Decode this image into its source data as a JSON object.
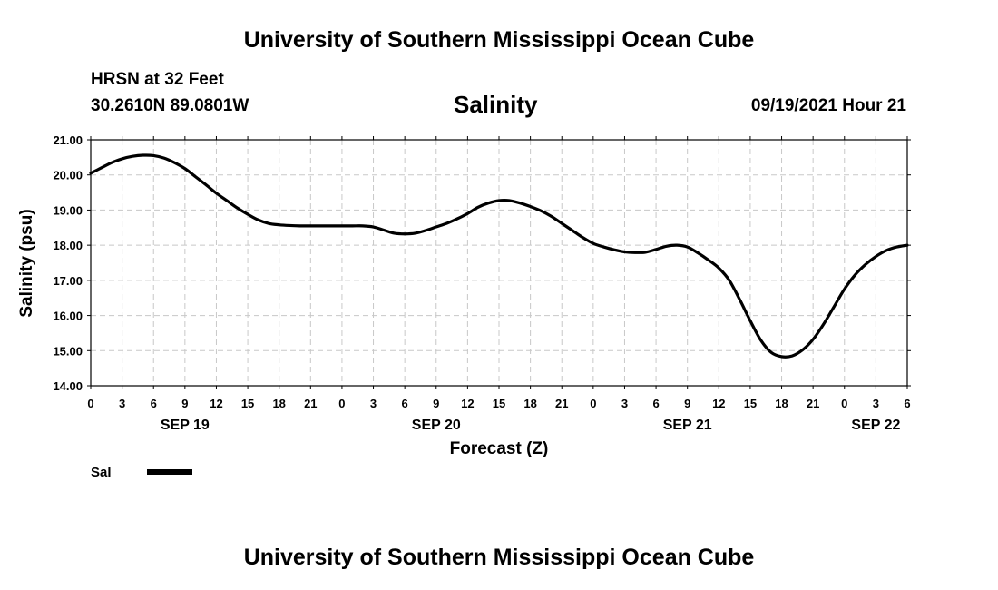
{
  "header": {
    "title": "University of Southern Mississippi Ocean Cube",
    "station": "HRSN at 32 Feet",
    "coordinates": "30.2610N  89.0801W",
    "timestamp": "09/19/2021 Hour 21"
  },
  "footer": {
    "title": "University of Southern Mississippi Ocean Cube"
  },
  "chart_data": {
    "type": "line",
    "title": "Salinity",
    "xlabel": "Forecast (Z)",
    "ylabel": "Salinity (psu)",
    "ylim": [
      14,
      21
    ],
    "xlim": [
      0,
      78
    ],
    "x_unit": "hours since 2021-09-19 00Z",
    "yticks": [
      "14.00",
      "15.00",
      "16.00",
      "17.00",
      "18.00",
      "19.00",
      "20.00",
      "21.00"
    ],
    "xticks": [
      "0",
      "3",
      "6",
      "9",
      "12",
      "15",
      "18",
      "21",
      "0",
      "3",
      "6",
      "9",
      "12",
      "15",
      "18",
      "21",
      "0",
      "3",
      "6",
      "9",
      "12",
      "15",
      "18",
      "21",
      "0",
      "3",
      "6"
    ],
    "day_labels": [
      {
        "label": "SEP 19",
        "hour": 9
      },
      {
        "label": "SEP 20",
        "hour": 33
      },
      {
        "label": "SEP 21",
        "hour": 57
      },
      {
        "label": "SEP 22",
        "hour": 75
      }
    ],
    "grid": true,
    "series": [
      {
        "name": "Sal",
        "color": "#000000",
        "x": [
          0,
          1,
          2,
          3,
          4,
          5,
          6,
          7,
          8,
          9,
          10,
          11,
          12,
          13,
          14,
          15,
          16,
          17,
          18,
          19,
          20,
          21,
          22,
          23,
          24,
          25,
          26,
          27,
          28,
          29,
          30,
          31,
          32,
          33,
          34,
          35,
          36,
          37,
          38,
          39,
          40,
          41,
          42,
          43,
          44,
          45,
          46,
          47,
          48,
          49,
          50,
          51,
          52,
          53,
          54,
          55,
          56,
          57,
          58,
          59,
          60,
          61,
          62,
          63,
          64,
          65,
          66,
          67,
          68,
          69,
          70,
          71,
          72,
          73,
          74,
          75,
          76,
          77,
          78
        ],
        "values": [
          20.05,
          20.2,
          20.35,
          20.46,
          20.53,
          20.56,
          20.55,
          20.48,
          20.35,
          20.18,
          19.95,
          19.72,
          19.48,
          19.27,
          19.06,
          18.88,
          18.72,
          18.62,
          18.58,
          18.56,
          18.55,
          18.55,
          18.55,
          18.55,
          18.55,
          18.55,
          18.55,
          18.52,
          18.43,
          18.34,
          18.32,
          18.34,
          18.42,
          18.52,
          18.62,
          18.75,
          18.9,
          19.08,
          19.2,
          19.27,
          19.27,
          19.2,
          19.1,
          18.98,
          18.82,
          18.62,
          18.42,
          18.22,
          18.05,
          17.95,
          17.87,
          17.81,
          17.79,
          17.8,
          17.88,
          17.97,
          18.0,
          17.95,
          17.78,
          17.58,
          17.35,
          17.0,
          16.45,
          15.85,
          15.3,
          14.95,
          14.83,
          14.85,
          15.02,
          15.32,
          15.75,
          16.25,
          16.75,
          17.15,
          17.45,
          17.68,
          17.85,
          17.95,
          18.0
        ]
      }
    ],
    "legend": {
      "position": "bottom-left",
      "entries": [
        "Sal"
      ]
    }
  }
}
